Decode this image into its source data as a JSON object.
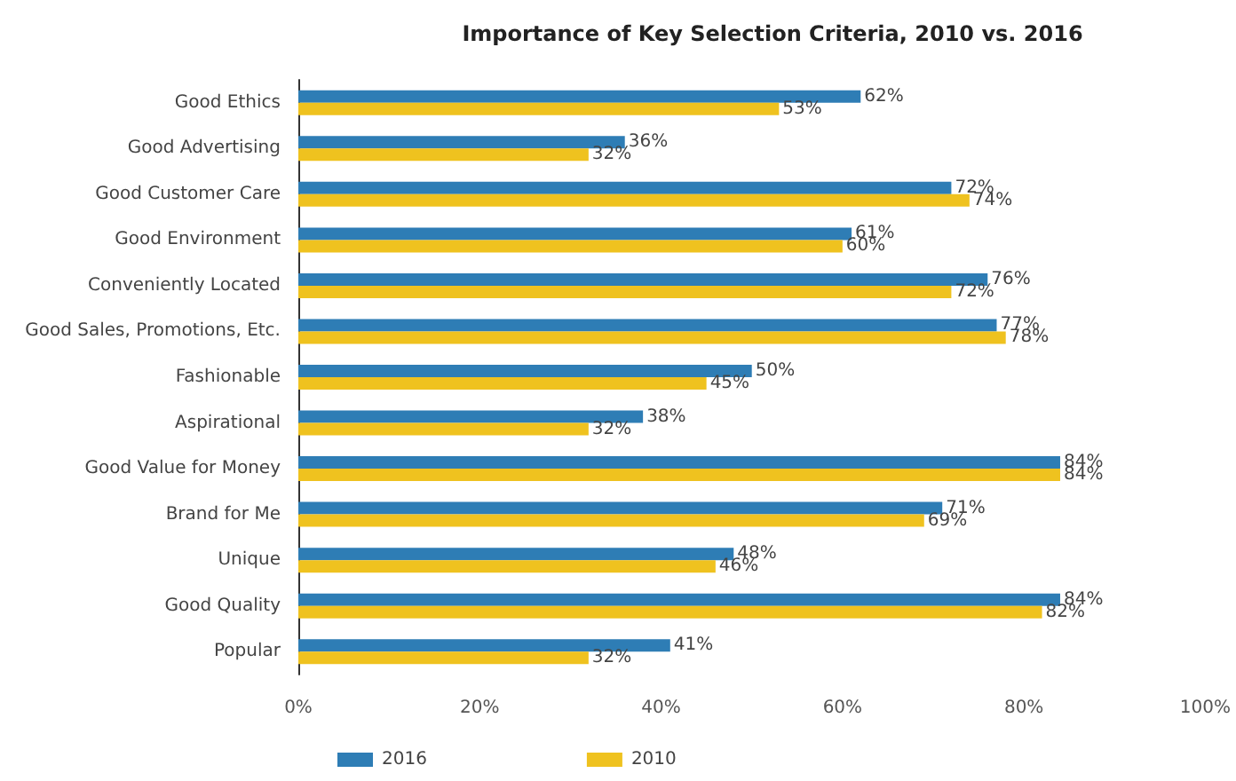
{
  "chart_data": {
    "type": "bar",
    "orientation": "horizontal",
    "title": "Importance of Key Selection Criteria, 2010 vs. 2016",
    "categories": [
      "Good Ethics",
      "Good Advertising",
      "Good Customer Care",
      "Good Environment",
      "Conveniently Located",
      "Good Sales, Promotions, Etc.",
      "Fashionable",
      "Aspirational",
      "Good Value for Money",
      "Brand for Me",
      "Unique",
      "Good Quality",
      "Popular"
    ],
    "series": [
      {
        "name": "2016",
        "color": "#2e7db5",
        "values": [
          62,
          36,
          72,
          61,
          76,
          77,
          50,
          38,
          84,
          71,
          48,
          84,
          41
        ],
        "value_labels": [
          "62%",
          "36%",
          "72%",
          "61%",
          "76%",
          "77%",
          "50%",
          "38%",
          "84%",
          "71%",
          "48%",
          "84%",
          "41%"
        ]
      },
      {
        "name": "2010",
        "color": "#efc21f",
        "values": [
          53,
          32,
          74,
          60,
          72,
          78,
          45,
          32,
          84,
          69,
          46,
          82,
          32
        ],
        "value_labels": [
          "53%",
          "32%",
          "74%",
          "60%",
          "72%",
          "78%",
          "45%",
          "32%",
          "84%",
          "69%",
          "46%",
          "82%",
          "32%"
        ]
      }
    ],
    "xlim": [
      0,
      100
    ],
    "xticks": [
      {
        "value": 0,
        "label": "0%"
      },
      {
        "value": 20,
        "label": "20%"
      },
      {
        "value": 40,
        "label": "40%"
      },
      {
        "value": 60,
        "label": "60%"
      },
      {
        "value": 80,
        "label": "80%"
      },
      {
        "value": 100,
        "label": "100%"
      }
    ],
    "grid": false,
    "legend": "bottom left"
  }
}
